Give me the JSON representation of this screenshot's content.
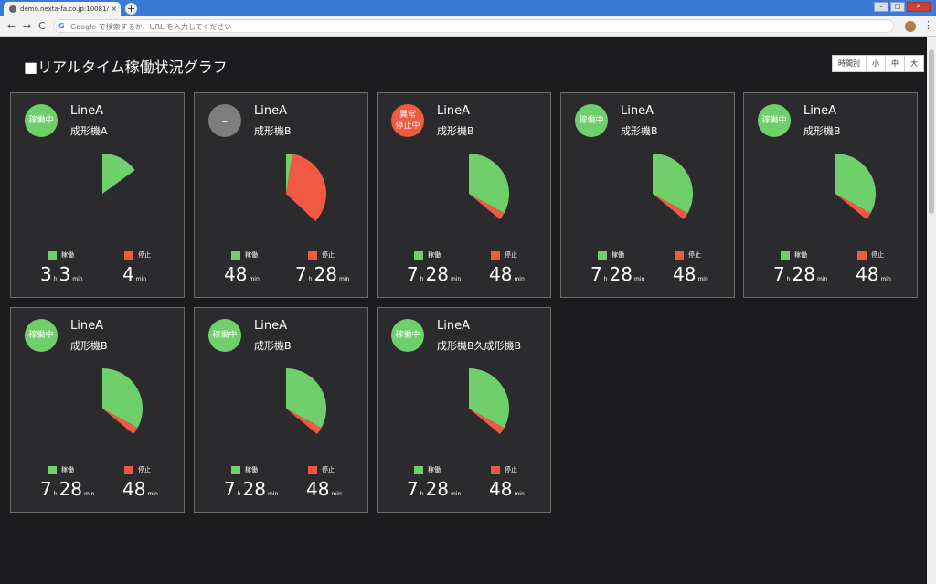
{
  "browser": {
    "tab_title": "demo.nexta-fa.co.jp:10081/",
    "tab_close": "×",
    "new_tab": "+",
    "omnibox_placeholder": "Google で検索するか、URL を入力してください",
    "win_min": "–",
    "win_max": "□",
    "win_close": "✕"
  },
  "page": {
    "title": "■リアルタイム稼働状況グラフ",
    "size_toggle": [
      "時間別",
      "小",
      "中",
      "大"
    ]
  },
  "legend": {
    "running": "稼働",
    "stopped": "停止"
  },
  "colors": {
    "running": "#6fcf6a",
    "stopped": "#f05a43",
    "unknown": "#7d7d7d",
    "background": "#1c1c1f"
  },
  "units": {
    "hour": "h",
    "minute": "min"
  },
  "cards": [
    {
      "status": "稼働中",
      "status_type": "run",
      "line": "LineA",
      "machine": "成形機A",
      "run_fraction": 0.15,
      "stop_fraction": 0.0,
      "run": {
        "h": "3",
        "m": "3"
      },
      "stop": {
        "h": "",
        "m": "4"
      }
    },
    {
      "status": "–",
      "status_type": "none",
      "line": "LineA",
      "machine": "成形機B",
      "run_fraction": 0.025,
      "stop_fraction": 0.345,
      "run": {
        "h": "",
        "m": "48"
      },
      "stop": {
        "h": "7",
        "m": "28"
      }
    },
    {
      "status": "異常\n停止中",
      "status_type": "stop",
      "line": "LineA",
      "machine": "成形機B",
      "run_fraction": 0.33,
      "stop_fraction": 0.03,
      "run": {
        "h": "7",
        "m": "28"
      },
      "stop": {
        "h": "",
        "m": "48"
      }
    },
    {
      "status": "稼働中",
      "status_type": "run",
      "line": "LineA",
      "machine": "成形機B",
      "run_fraction": 0.33,
      "stop_fraction": 0.03,
      "run": {
        "h": "7",
        "m": "28"
      },
      "stop": {
        "h": "",
        "m": "48"
      }
    },
    {
      "status": "稼働中",
      "status_type": "run",
      "line": "LineA",
      "machine": "成形機B",
      "run_fraction": 0.33,
      "stop_fraction": 0.03,
      "run": {
        "h": "7",
        "m": "28"
      },
      "stop": {
        "h": "",
        "m": "48"
      }
    },
    {
      "status": "稼働中",
      "status_type": "run",
      "line": "LineA",
      "machine": "成形機B",
      "run_fraction": 0.33,
      "stop_fraction": 0.03,
      "run": {
        "h": "7",
        "m": "28"
      },
      "stop": {
        "h": "",
        "m": "48"
      }
    },
    {
      "status": "稼働中",
      "status_type": "run",
      "line": "LineA",
      "machine": "成形機B",
      "run_fraction": 0.33,
      "stop_fraction": 0.03,
      "run": {
        "h": "7",
        "m": "28"
      },
      "stop": {
        "h": "",
        "m": "48"
      }
    },
    {
      "status": "稼働中",
      "status_type": "run",
      "line": "LineA",
      "machine": "成形機B久成形機B",
      "run_fraction": 0.33,
      "stop_fraction": 0.03,
      "run": {
        "h": "7",
        "m": "28"
      },
      "stop": {
        "h": "",
        "m": "48"
      }
    }
  ]
}
